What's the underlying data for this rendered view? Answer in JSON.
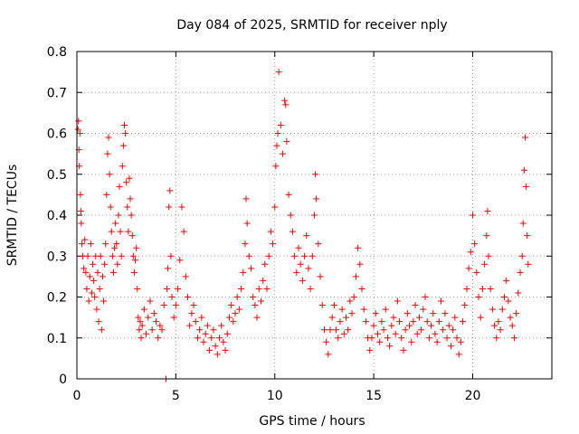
{
  "chart_data": {
    "type": "scatter",
    "title": "Day 084 of 2025, SRMTID for receiver nply",
    "xlabel": "GPS time / hours",
    "ylabel": "SRMTID / TECUs",
    "xlim": [
      0,
      24
    ],
    "ylim": [
      0,
      0.8
    ],
    "grid": true,
    "marker": "+",
    "series_color": "#ff0000",
    "x_ticks": [
      {
        "value": 0,
        "label": "0"
      },
      {
        "value": 5,
        "label": "5"
      },
      {
        "value": 10,
        "label": "10"
      },
      {
        "value": 15,
        "label": "15"
      },
      {
        "value": 20,
        "label": "20"
      }
    ],
    "y_ticks": [
      {
        "value": 0,
        "label": "0"
      },
      {
        "value": 0.1,
        "label": "0.1"
      },
      {
        "value": 0.2,
        "label": "0.2"
      },
      {
        "value": 0.3,
        "label": "0.3"
      },
      {
        "value": 0.4,
        "label": "0.4"
      },
      {
        "value": 0.5,
        "label": "0.5"
      },
      {
        "value": 0.6,
        "label": "0.6"
      },
      {
        "value": 0.7,
        "label": "0.7"
      },
      {
        "value": 0.8,
        "label": "0.8"
      }
    ],
    "points": [
      [
        0.05,
        0.61
      ],
      [
        0.08,
        0.63
      ],
      [
        0.1,
        0.56
      ],
      [
        0.12,
        0.52
      ],
      [
        0.15,
        0.6
      ],
      [
        0.18,
        0.45
      ],
      [
        0.2,
        0.41
      ],
      [
        0.22,
        0.38
      ],
      [
        0.25,
        0.33
      ],
      [
        0.3,
        0.3
      ],
      [
        0.35,
        0.27
      ],
      [
        0.4,
        0.34
      ],
      [
        0.45,
        0.26
      ],
      [
        0.5,
        0.22
      ],
      [
        0.55,
        0.3
      ],
      [
        0.6,
        0.19
      ],
      [
        0.65,
        0.25
      ],
      [
        0.7,
        0.33
      ],
      [
        0.75,
        0.21
      ],
      [
        0.8,
        0.28
      ],
      [
        0.85,
        0.24
      ],
      [
        0.9,
        0.2
      ],
      [
        0.95,
        0.3
      ],
      [
        1.0,
        0.17
      ],
      [
        1.05,
        0.26
      ],
      [
        1.1,
        0.14
      ],
      [
        1.15,
        0.22
      ],
      [
        1.2,
        0.3
      ],
      [
        1.25,
        0.12
      ],
      [
        1.3,
        0.25
      ],
      [
        1.35,
        0.19
      ],
      [
        1.4,
        0.28
      ],
      [
        1.45,
        0.33
      ],
      [
        1.5,
        0.45
      ],
      [
        1.55,
        0.55
      ],
      [
        1.6,
        0.59
      ],
      [
        1.65,
        0.5
      ],
      [
        1.7,
        0.42
      ],
      [
        1.75,
        0.36
      ],
      [
        1.8,
        0.3
      ],
      [
        1.85,
        0.26
      ],
      [
        1.9,
        0.32
      ],
      [
        1.95,
        0.38
      ],
      [
        2.0,
        0.33
      ],
      [
        2.05,
        0.28
      ],
      [
        2.1,
        0.4
      ],
      [
        2.15,
        0.47
      ],
      [
        2.2,
        0.36
      ],
      [
        2.25,
        0.3
      ],
      [
        2.3,
        0.52
      ],
      [
        2.35,
        0.57
      ],
      [
        2.4,
        0.62
      ],
      [
        2.45,
        0.6
      ],
      [
        2.5,
        0.48
      ],
      [
        2.55,
        0.42
      ],
      [
        2.6,
        0.36
      ],
      [
        2.65,
        0.49
      ],
      [
        2.7,
        0.44
      ],
      [
        2.75,
        0.4
      ],
      [
        2.8,
        0.35
      ],
      [
        2.85,
        0.3
      ],
      [
        2.9,
        0.26
      ],
      [
        2.95,
        0.29
      ],
      [
        3.0,
        0.32
      ],
      [
        3.05,
        0.22
      ],
      [
        3.1,
        0.15
      ],
      [
        3.15,
        0.12
      ],
      [
        3.2,
        0.14
      ],
      [
        3.25,
        0.1
      ],
      [
        3.3,
        0.13
      ],
      [
        3.4,
        0.17
      ],
      [
        3.5,
        0.11
      ],
      [
        3.6,
        0.15
      ],
      [
        3.7,
        0.19
      ],
      [
        3.8,
        0.12
      ],
      [
        3.9,
        0.16
      ],
      [
        4.0,
        0.14
      ],
      [
        4.1,
        0.1
      ],
      [
        4.2,
        0.13
      ],
      [
        4.3,
        0.12
      ],
      [
        4.4,
        0.18
      ],
      [
        4.5,
        0.0
      ],
      [
        4.55,
        0.22
      ],
      [
        4.6,
        0.27
      ],
      [
        4.65,
        0.42
      ],
      [
        4.7,
        0.46
      ],
      [
        4.75,
        0.3
      ],
      [
        4.8,
        0.2
      ],
      [
        4.9,
        0.15
      ],
      [
        5.0,
        0.18
      ],
      [
        5.1,
        0.22
      ],
      [
        5.2,
        0.29
      ],
      [
        5.3,
        0.42
      ],
      [
        5.4,
        0.36
      ],
      [
        5.5,
        0.25
      ],
      [
        5.6,
        0.2
      ],
      [
        5.7,
        0.13
      ],
      [
        5.8,
        0.16
      ],
      [
        5.9,
        0.18
      ],
      [
        6.0,
        0.14
      ],
      [
        6.1,
        0.1
      ],
      [
        6.2,
        0.12
      ],
      [
        6.3,
        0.15
      ],
      [
        6.4,
        0.09
      ],
      [
        6.5,
        0.11
      ],
      [
        6.6,
        0.13
      ],
      [
        6.7,
        0.07
      ],
      [
        6.8,
        0.1
      ],
      [
        6.9,
        0.12
      ],
      [
        7.0,
        0.08
      ],
      [
        7.1,
        0.06
      ],
      [
        7.2,
        0.1
      ],
      [
        7.3,
        0.13
      ],
      [
        7.4,
        0.09
      ],
      [
        7.5,
        0.07
      ],
      [
        7.6,
        0.11
      ],
      [
        7.7,
        0.15
      ],
      [
        7.8,
        0.18
      ],
      [
        7.9,
        0.14
      ],
      [
        8.0,
        0.16
      ],
      [
        8.1,
        0.2
      ],
      [
        8.2,
        0.17
      ],
      [
        8.3,
        0.22
      ],
      [
        8.4,
        0.26
      ],
      [
        8.5,
        0.33
      ],
      [
        8.55,
        0.44
      ],
      [
        8.6,
        0.38
      ],
      [
        8.7,
        0.3
      ],
      [
        8.8,
        0.27
      ],
      [
        8.9,
        0.2
      ],
      [
        9.0,
        0.18
      ],
      [
        9.1,
        0.15
      ],
      [
        9.2,
        0.22
      ],
      [
        9.3,
        0.19
      ],
      [
        9.4,
        0.24
      ],
      [
        9.5,
        0.28
      ],
      [
        9.6,
        0.22
      ],
      [
        9.7,
        0.3
      ],
      [
        9.8,
        0.36
      ],
      [
        9.9,
        0.33
      ],
      [
        10.0,
        0.42
      ],
      [
        10.05,
        0.52
      ],
      [
        10.1,
        0.57
      ],
      [
        10.15,
        0.6
      ],
      [
        10.2,
        0.75
      ],
      [
        10.3,
        0.62
      ],
      [
        10.4,
        0.55
      ],
      [
        10.5,
        0.68
      ],
      [
        10.55,
        0.67
      ],
      [
        10.6,
        0.58
      ],
      [
        10.7,
        0.45
      ],
      [
        10.8,
        0.4
      ],
      [
        10.9,
        0.36
      ],
      [
        11.0,
        0.3
      ],
      [
        11.1,
        0.26
      ],
      [
        11.2,
        0.32
      ],
      [
        11.3,
        0.28
      ],
      [
        11.4,
        0.24
      ],
      [
        11.5,
        0.3
      ],
      [
        11.6,
        0.35
      ],
      [
        11.7,
        0.27
      ],
      [
        11.8,
        0.22
      ],
      [
        11.9,
        0.3
      ],
      [
        12.0,
        0.4
      ],
      [
        12.05,
        0.5
      ],
      [
        12.1,
        0.44
      ],
      [
        12.2,
        0.33
      ],
      [
        12.3,
        0.25
      ],
      [
        12.4,
        0.18
      ],
      [
        12.5,
        0.12
      ],
      [
        12.6,
        0.09
      ],
      [
        12.7,
        0.06
      ],
      [
        12.8,
        0.12
      ],
      [
        12.9,
        0.15
      ],
      [
        13.0,
        0.18
      ],
      [
        13.1,
        0.12
      ],
      [
        13.2,
        0.1
      ],
      [
        13.3,
        0.14
      ],
      [
        13.4,
        0.17
      ],
      [
        13.5,
        0.11
      ],
      [
        13.6,
        0.15
      ],
      [
        13.7,
        0.12
      ],
      [
        13.8,
        0.19
      ],
      [
        13.9,
        0.16
      ],
      [
        14.0,
        0.2
      ],
      [
        14.1,
        0.25
      ],
      [
        14.2,
        0.32
      ],
      [
        14.3,
        0.28
      ],
      [
        14.4,
        0.22
      ],
      [
        14.5,
        0.17
      ],
      [
        14.6,
        0.14
      ],
      [
        14.7,
        0.1
      ],
      [
        14.8,
        0.07
      ],
      [
        14.9,
        0.1
      ],
      [
        15.0,
        0.13
      ],
      [
        15.1,
        0.16
      ],
      [
        15.2,
        0.11
      ],
      [
        15.3,
        0.09
      ],
      [
        15.4,
        0.14
      ],
      [
        15.5,
        0.12
      ],
      [
        15.6,
        0.17
      ],
      [
        15.7,
        0.1
      ],
      [
        15.8,
        0.08
      ],
      [
        15.9,
        0.13
      ],
      [
        16.0,
        0.15
      ],
      [
        16.1,
        0.11
      ],
      [
        16.2,
        0.19
      ],
      [
        16.3,
        0.14
      ],
      [
        16.4,
        0.1
      ],
      [
        16.5,
        0.07
      ],
      [
        16.6,
        0.12
      ],
      [
        16.7,
        0.16
      ],
      [
        16.8,
        0.13
      ],
      [
        16.9,
        0.09
      ],
      [
        17.0,
        0.14
      ],
      [
        17.1,
        0.18
      ],
      [
        17.2,
        0.11
      ],
      [
        17.3,
        0.15
      ],
      [
        17.4,
        0.12
      ],
      [
        17.5,
        0.17
      ],
      [
        17.6,
        0.2
      ],
      [
        17.7,
        0.14
      ],
      [
        17.8,
        0.1
      ],
      [
        17.9,
        0.13
      ],
      [
        18.0,
        0.16
      ],
      [
        18.1,
        0.11
      ],
      [
        18.2,
        0.09
      ],
      [
        18.3,
        0.14
      ],
      [
        18.4,
        0.19
      ],
      [
        18.5,
        0.12
      ],
      [
        18.6,
        0.16
      ],
      [
        18.7,
        0.1
      ],
      [
        18.8,
        0.13
      ],
      [
        18.9,
        0.08
      ],
      [
        19.0,
        0.12
      ],
      [
        19.1,
        0.15
      ],
      [
        19.2,
        0.1
      ],
      [
        19.3,
        0.06
      ],
      [
        19.4,
        0.09
      ],
      [
        19.5,
        0.14
      ],
      [
        19.6,
        0.18
      ],
      [
        19.7,
        0.22
      ],
      [
        19.8,
        0.27
      ],
      [
        19.9,
        0.31
      ],
      [
        20.0,
        0.4
      ],
      [
        20.1,
        0.33
      ],
      [
        20.2,
        0.26
      ],
      [
        20.3,
        0.2
      ],
      [
        20.4,
        0.15
      ],
      [
        20.5,
        0.22
      ],
      [
        20.6,
        0.28
      ],
      [
        20.7,
        0.35
      ],
      [
        20.75,
        0.41
      ],
      [
        20.8,
        0.3
      ],
      [
        20.9,
        0.22
      ],
      [
        21.0,
        0.17
      ],
      [
        21.1,
        0.13
      ],
      [
        21.2,
        0.1
      ],
      [
        21.3,
        0.14
      ],
      [
        21.4,
        0.12
      ],
      [
        21.5,
        0.17
      ],
      [
        21.6,
        0.2
      ],
      [
        21.7,
        0.24
      ],
      [
        21.8,
        0.19
      ],
      [
        21.9,
        0.15
      ],
      [
        22.0,
        0.13
      ],
      [
        22.1,
        0.1
      ],
      [
        22.2,
        0.16
      ],
      [
        22.3,
        0.21
      ],
      [
        22.4,
        0.26
      ],
      [
        22.5,
        0.3
      ],
      [
        22.55,
        0.38
      ],
      [
        22.6,
        0.51
      ],
      [
        22.65,
        0.59
      ],
      [
        22.7,
        0.47
      ],
      [
        22.75,
        0.35
      ],
      [
        22.8,
        0.28
      ]
    ]
  }
}
